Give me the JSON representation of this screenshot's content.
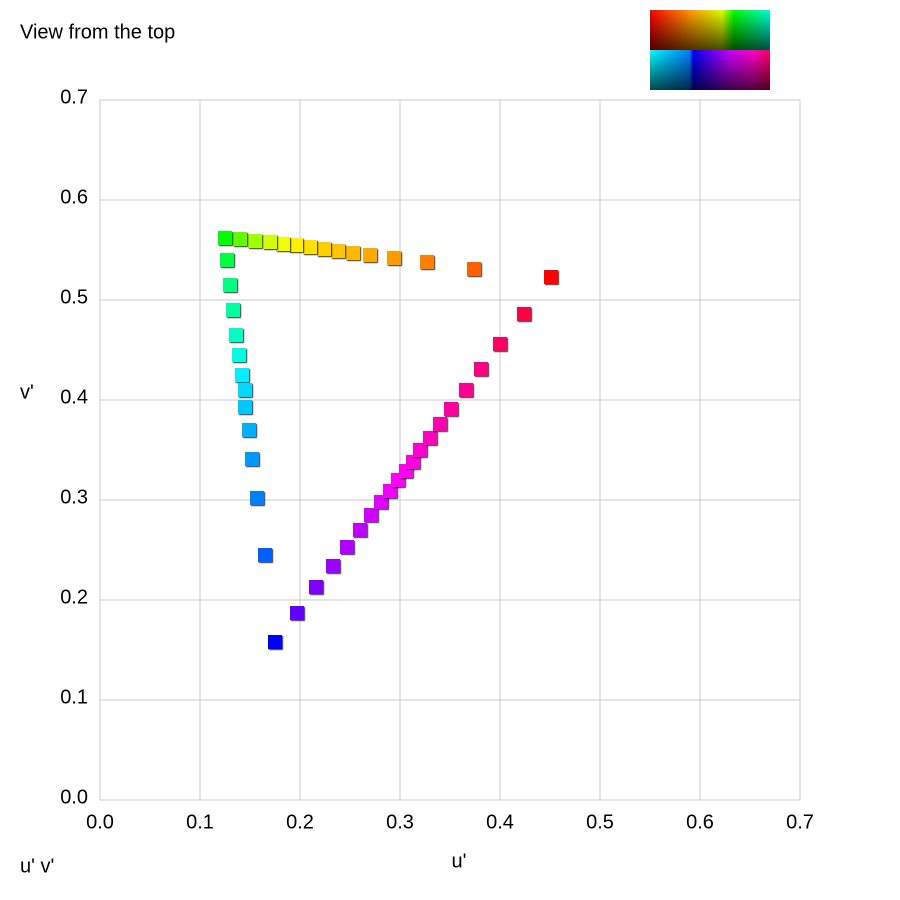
{
  "chart_data": {
    "type": "scatter",
    "title": "View from the top",
    "xlabel": "u'",
    "ylabel": "v'",
    "corner_label": "u' v'",
    "xlim": [
      0,
      0.7
    ],
    "ylim": [
      0,
      0.7
    ],
    "xticks": [
      {
        "value": 0,
        "label": "0.0"
      },
      0.1,
      0.2,
      0.3,
      0.4,
      0.5,
      0.6,
      0.7
    ],
    "yticks": [
      {
        "value": 0,
        "label": "0.0"
      },
      0.1,
      0.2,
      0.3,
      0.4,
      0.5,
      0.6,
      0.7
    ],
    "grid": true,
    "x": [
      0.451,
      0.374,
      0.327,
      0.294,
      0.27,
      0.253,
      0.238,
      0.224,
      0.21,
      0.196,
      0.183,
      0.17,
      0.155,
      0.14,
      0.125,
      0.127,
      0.13,
      0.133,
      0.136,
      0.139,
      0.142,
      0.145,
      0.145,
      0.149,
      0.152,
      0.157,
      0.165,
      0.175,
      0.197,
      0.216,
      0.233,
      0.247,
      0.26,
      0.271,
      0.281,
      0.29,
      0.298,
      0.306,
      0.313,
      0.32,
      0.33,
      0.34,
      0.351,
      0.366,
      0.381,
      0.4,
      0.424
    ],
    "y": [
      0.523,
      0.531,
      0.538,
      0.542,
      0.545,
      0.547,
      0.549,
      0.551,
      0.553,
      0.555,
      0.556,
      0.558,
      0.559,
      0.561,
      0.562,
      0.54,
      0.515,
      0.49,
      0.465,
      0.445,
      0.425,
      0.41,
      0.393,
      0.37,
      0.341,
      0.302,
      0.245,
      0.158,
      0.187,
      0.213,
      0.234,
      0.253,
      0.27,
      0.285,
      0.298,
      0.309,
      0.32,
      0.329,
      0.338,
      0.35,
      0.362,
      0.376,
      0.391,
      0.41,
      0.431,
      0.456,
      0.486
    ],
    "colors": [
      "#ff0000",
      "#ff6000",
      "#ff8000",
      "#ff9a00",
      "#ffaa00",
      "#ffb800",
      "#ffc400",
      "#ffd000",
      "#ffe000",
      "#fff000",
      "#f0ff00",
      "#d0ff00",
      "#a0ff00",
      "#60ff00",
      "#00ff00",
      "#00ff40",
      "#00ff80",
      "#00ffa0",
      "#00ffc0",
      "#00ffe0",
      "#00f0ff",
      "#00d8ff",
      "#00c8ff",
      "#00b0ff",
      "#0098ff",
      "#0080ff",
      "#0060ff",
      "#0000ff",
      "#6000ff",
      "#8000ff",
      "#9a00ff",
      "#b000ff",
      "#c000ff",
      "#d000ff",
      "#e000ff",
      "#f000ff",
      "#ff00ff",
      "#ff00f0",
      "#ff00e0",
      "#ff00d0",
      "#ff00c0",
      "#ff00b0",
      "#ff00a0",
      "#ff0090",
      "#ff0080",
      "#ff0060",
      "#ff0040"
    ]
  }
}
